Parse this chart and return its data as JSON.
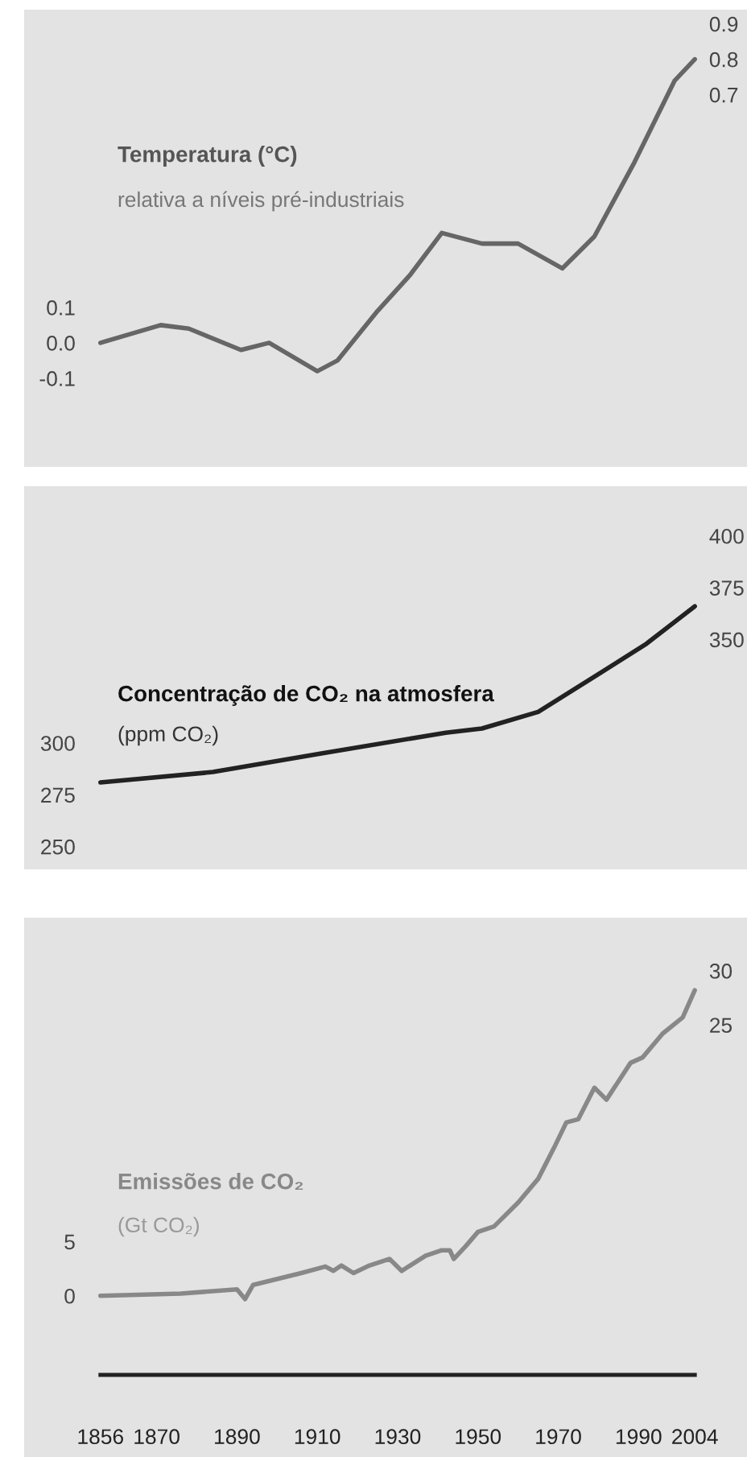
{
  "chart_data": [
    {
      "type": "line",
      "title": "Temperatura (°C)",
      "subtitle": "relativa a níveis pré-industriais",
      "x": [
        1856,
        1871,
        1878,
        1891,
        1898,
        1910,
        1915,
        1925,
        1933,
        1941,
        1951,
        1960,
        1971,
        1979,
        1989,
        1999,
        2004
      ],
      "series": [
        {
          "color": "#666666",
          "values": [
            0.0,
            0.05,
            0.04,
            -0.02,
            0.0,
            -0.08,
            -0.05,
            0.09,
            0.19,
            0.31,
            0.28,
            0.28,
            0.21,
            0.3,
            0.51,
            0.74,
            0.8
          ]
        }
      ],
      "xlim": [
        1837,
        2017
      ],
      "xticks": [
        1856,
        1870,
        1890,
        1910,
        1930,
        1950,
        1970,
        1990,
        2004
      ],
      "ylim": [
        -0.35,
        0.94
      ],
      "yticks": [
        0.1,
        {
          "value": 0,
          "label": "0.0"
        },
        -0.1
      ],
      "y2lim": [
        -0.35,
        0.94
      ],
      "y2ticks": [
        0.9,
        0.8,
        0.7
      ],
      "tick_labels": "y",
      "grid": false,
      "legend": false
    },
    {
      "type": "line",
      "title": "Concentração de CO₂ na atmosfera",
      "subtitle": "(ppm CO₂)",
      "x": [
        1856,
        1884,
        1911,
        1942,
        1951,
        1965,
        1979,
        1992,
        2004
      ],
      "series": [
        {
          "color": "#222222",
          "values": [
            281,
            286,
            295,
            305,
            307,
            315,
            332,
            348,
            366
          ]
        }
      ],
      "xlim": [
        1837,
        2017
      ],
      "xticks": [
        1856,
        1870,
        1890,
        1910,
        1930,
        1950,
        1970,
        1990,
        2004
      ],
      "ylim": [
        239,
        424
      ],
      "yticks": [
        300,
        275,
        250
      ],
      "y2lim": [
        239,
        424
      ],
      "y2ticks": [
        400,
        375,
        350
      ],
      "tick_labels": "y",
      "grid": false,
      "legend": false
    },
    {
      "type": "line",
      "title": "Emissões de CO₂",
      "subtitle": "(Gt CO₂)",
      "x": [
        1856,
        1876,
        1890,
        1892,
        1894,
        1906,
        1912,
        1914,
        1916,
        1919,
        1923,
        1928,
        1931,
        1937,
        1941,
        1943,
        1944,
        1947,
        1950,
        1954,
        1960,
        1965,
        1969,
        1972,
        1975,
        1979,
        1982,
        1988,
        1991,
        1996,
        2001,
        2004
      ],
      "series": [
        {
          "color": "#888888",
          "values": [
            0.0,
            0.2,
            0.6,
            -0.3,
            1.0,
            2.1,
            2.7,
            2.3,
            2.8,
            2.1,
            2.8,
            3.4,
            2.3,
            3.7,
            4.2,
            4.2,
            3.4,
            4.6,
            5.9,
            6.4,
            8.6,
            10.8,
            13.7,
            16.0,
            16.3,
            19.2,
            18.1,
            21.5,
            22.0,
            24.2,
            25.7,
            28.2
          ]
        }
      ],
      "xlim": [
        1837,
        2017
      ],
      "xticks": [
        1856,
        1870,
        1890,
        1910,
        1930,
        1950,
        1970,
        1990,
        2004
      ],
      "ylim": [
        -7.3,
        34.9
      ],
      "yticks": [
        5,
        0
      ],
      "y2lim": [
        -7.3,
        34.9
      ],
      "y2ticks": [
        30,
        25
      ],
      "grid": false,
      "legend": false
    }
  ]
}
